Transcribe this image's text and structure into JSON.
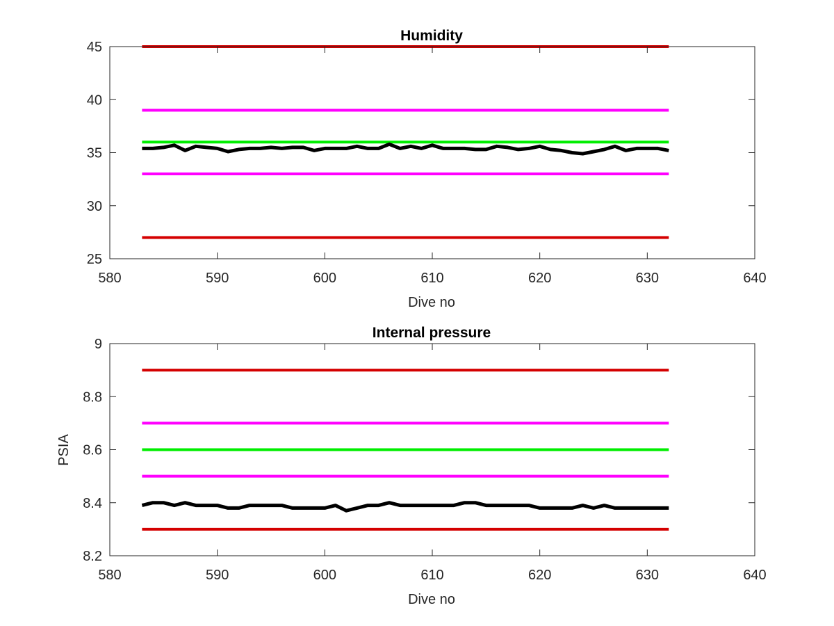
{
  "chart_data": [
    {
      "type": "line",
      "title": "Humidity",
      "xlabel": "Dive no",
      "ylabel": "",
      "xlim": [
        580,
        640
      ],
      "ylim": [
        25,
        45
      ],
      "xticks": [
        580,
        590,
        600,
        610,
        620,
        630,
        640
      ],
      "yticks": [
        25,
        30,
        35,
        40,
        45
      ],
      "grid": false,
      "series": [
        {
          "role": "limit-high",
          "color": "#d40000",
          "x": [
            583,
            632
          ],
          "values": [
            45,
            45
          ]
        },
        {
          "role": "limit-upper",
          "color": "#ff00ff",
          "x": [
            583,
            632
          ],
          "values": [
            39,
            39
          ]
        },
        {
          "role": "target",
          "color": "#00ee00",
          "x": [
            583,
            632
          ],
          "values": [
            36,
            36
          ]
        },
        {
          "role": "limit-lower",
          "color": "#ff00ff",
          "x": [
            583,
            632
          ],
          "values": [
            33,
            33
          ]
        },
        {
          "role": "limit-low",
          "color": "#d40000",
          "x": [
            583,
            632
          ],
          "values": [
            27,
            27
          ]
        },
        {
          "role": "measured",
          "color": "#000000",
          "x": [
            583,
            584,
            585,
            586,
            587,
            588,
            589,
            590,
            591,
            592,
            593,
            594,
            595,
            596,
            597,
            598,
            599,
            600,
            601,
            602,
            603,
            604,
            605,
            606,
            607,
            608,
            609,
            610,
            611,
            612,
            613,
            614,
            615,
            616,
            617,
            618,
            619,
            620,
            621,
            622,
            623,
            624,
            625,
            626,
            627,
            628,
            629,
            630,
            631,
            632
          ],
          "values": [
            35.4,
            35.4,
            35.5,
            35.7,
            35.2,
            35.6,
            35.5,
            35.4,
            35.1,
            35.3,
            35.4,
            35.4,
            35.5,
            35.4,
            35.5,
            35.5,
            35.2,
            35.4,
            35.4,
            35.4,
            35.6,
            35.4,
            35.4,
            35.8,
            35.4,
            35.6,
            35.4,
            35.7,
            35.4,
            35.4,
            35.4,
            35.3,
            35.3,
            35.6,
            35.5,
            35.3,
            35.4,
            35.6,
            35.3,
            35.2,
            35.0,
            34.9,
            35.1,
            35.3,
            35.6,
            35.2,
            35.4,
            35.4,
            35.4,
            35.2
          ]
        }
      ]
    },
    {
      "type": "line",
      "title": "Internal pressure",
      "xlabel": "Dive no",
      "ylabel": "PSIA",
      "xlim": [
        580,
        640
      ],
      "ylim": [
        8.2,
        9.0
      ],
      "xticks": [
        580,
        590,
        600,
        610,
        620,
        630,
        640
      ],
      "yticks": [
        8.2,
        8.4,
        8.6,
        8.8,
        9.0
      ],
      "ytick_labels": [
        "8.2",
        "8.4",
        "8.6",
        "8.8",
        "9"
      ],
      "grid": false,
      "series": [
        {
          "role": "limit-high",
          "color": "#d40000",
          "x": [
            583,
            632
          ],
          "values": [
            8.9,
            8.9
          ]
        },
        {
          "role": "limit-upper",
          "color": "#ff00ff",
          "x": [
            583,
            632
          ],
          "values": [
            8.7,
            8.7
          ]
        },
        {
          "role": "target",
          "color": "#00ee00",
          "x": [
            583,
            632
          ],
          "values": [
            8.6,
            8.6
          ]
        },
        {
          "role": "limit-lower",
          "color": "#ff00ff",
          "x": [
            583,
            632
          ],
          "values": [
            8.5,
            8.5
          ]
        },
        {
          "role": "limit-low",
          "color": "#d40000",
          "x": [
            583,
            632
          ],
          "values": [
            8.3,
            8.3
          ]
        },
        {
          "role": "measured",
          "color": "#000000",
          "x": [
            583,
            584,
            585,
            586,
            587,
            588,
            589,
            590,
            591,
            592,
            593,
            594,
            595,
            596,
            597,
            598,
            599,
            600,
            601,
            602,
            603,
            604,
            605,
            606,
            607,
            608,
            609,
            610,
            611,
            612,
            613,
            614,
            615,
            616,
            617,
            618,
            619,
            620,
            621,
            622,
            623,
            624,
            625,
            626,
            627,
            628,
            629,
            630,
            631,
            632
          ],
          "values": [
            8.39,
            8.4,
            8.4,
            8.39,
            8.4,
            8.39,
            8.39,
            8.39,
            8.38,
            8.38,
            8.39,
            8.39,
            8.39,
            8.39,
            8.38,
            8.38,
            8.38,
            8.38,
            8.39,
            8.37,
            8.38,
            8.39,
            8.39,
            8.4,
            8.39,
            8.39,
            8.39,
            8.39,
            8.39,
            8.39,
            8.4,
            8.4,
            8.39,
            8.39,
            8.39,
            8.39,
            8.39,
            8.38,
            8.38,
            8.38,
            8.38,
            8.39,
            8.38,
            8.39,
            8.38,
            8.38,
            8.38,
            8.38,
            8.38,
            8.38
          ]
        }
      ]
    }
  ]
}
